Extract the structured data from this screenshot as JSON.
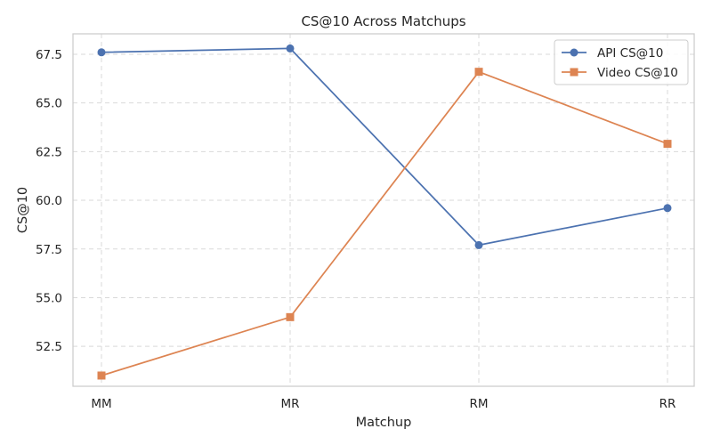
{
  "chart_data": {
    "type": "line",
    "title": "CS@10 Across Matchups",
    "xlabel": "Matchup",
    "ylabel": "CS@10",
    "categories": [
      "MM",
      "MR",
      "RM",
      "RR"
    ],
    "ylim": [
      50.45,
      68.55
    ],
    "yticks": [
      52.5,
      55.0,
      57.5,
      60.0,
      62.5,
      65.0,
      67.5
    ],
    "yticks_labels": [
      "52.5",
      "55.0",
      "57.5",
      "60.0",
      "62.5",
      "65.0",
      "67.5"
    ],
    "grid": true,
    "legend_position": "top-right",
    "series": [
      {
        "name": "API CS@10",
        "values": [
          67.6,
          67.8,
          57.7,
          59.6
        ],
        "color": "#4c72b0",
        "marker": "circle"
      },
      {
        "name": "Video CS@10",
        "values": [
          51.0,
          54.0,
          66.6,
          62.9
        ],
        "color": "#dd8452",
        "marker": "square"
      }
    ]
  }
}
